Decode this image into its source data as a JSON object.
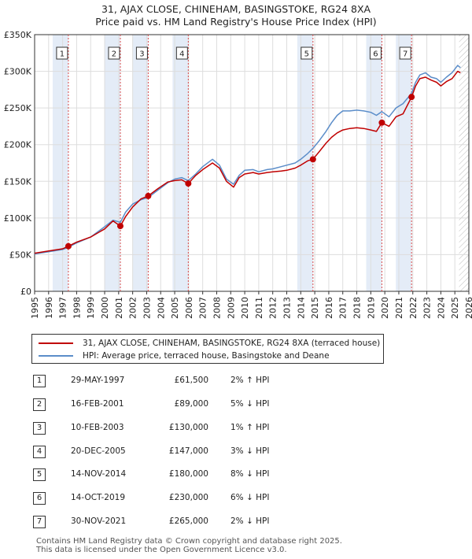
{
  "title_line1": "31, AJAX CLOSE, CHINEHAM, BASINGSTOKE, RG24 8XA",
  "title_line2": "Price paid vs. HM Land Registry's House Price Index (HPI)",
  "colors": {
    "price_paid": "#c00000",
    "hpi": "#5b8dc9",
    "shade": "#dbe6f4",
    "marker_line": "#d94a4a",
    "grid": "#dddddd"
  },
  "legend": {
    "price_paid": "31, AJAX CLOSE, CHINEHAM, BASINGSTOKE, RG24 8XA (terraced house)",
    "hpi": "HPI: Average price, terraced house, Basingstoke and Deane"
  },
  "chart_data": {
    "type": "line",
    "title": "Price paid vs. HM Land Registry's House Price Index (HPI)",
    "xlim": [
      1995,
      2026
    ],
    "ylim": [
      0,
      350000
    ],
    "y_ticks": [
      0,
      50000,
      100000,
      150000,
      200000,
      250000,
      300000,
      350000
    ],
    "y_tick_labels": [
      "£0",
      "£50K",
      "£100K",
      "£150K",
      "£200K",
      "£250K",
      "£300K",
      "£350K"
    ],
    "x_ticks": [
      1995,
      1996,
      1997,
      1998,
      1999,
      2000,
      2001,
      2002,
      2003,
      2004,
      2005,
      2006,
      2007,
      2008,
      2009,
      2010,
      2011,
      2012,
      2013,
      2014,
      2015,
      2016,
      2017,
      2018,
      2019,
      2020,
      2021,
      2022,
      2023,
      2024,
      2025,
      2026
    ],
    "hatched_from": 2025.3,
    "series": [
      {
        "name": "31, AJAX CLOSE, CHINEHAM, BASINGSTOKE, RG24 8XA (terraced house)",
        "x": [
          1995.0,
          1996.0,
          1997.0,
          1997.41,
          1998.0,
          1999.0,
          2000.0,
          2000.6,
          2001.12,
          2001.5,
          2002.0,
          2002.6,
          2003.11,
          2003.8,
          2004.5,
          2005.0,
          2005.5,
          2005.97,
          2006.5,
          2007.0,
          2007.7,
          2008.2,
          2008.7,
          2009.2,
          2009.6,
          2010.0,
          2010.6,
          2011.0,
          2011.6,
          2012.0,
          2012.6,
          2013.0,
          2013.6,
          2014.0,
          2014.5,
          2014.87,
          2015.3,
          2015.8,
          2016.2,
          2016.6,
          2017.0,
          2017.5,
          2018.0,
          2018.5,
          2019.0,
          2019.4,
          2019.79,
          2020.3,
          2020.8,
          2021.3,
          2021.91,
          2022.2,
          2022.5,
          2022.9,
          2023.3,
          2023.7,
          2024.0,
          2024.4,
          2024.8,
          2025.2,
          2025.4
        ],
        "values": [
          52000,
          55000,
          58000,
          61500,
          67000,
          74000,
          85000,
          96000,
          89000,
          102000,
          115000,
          126000,
          130000,
          140000,
          149000,
          151000,
          152000,
          147000,
          158000,
          166000,
          175000,
          168000,
          150000,
          142000,
          155000,
          160000,
          162000,
          160000,
          162000,
          163000,
          164000,
          165000,
          168000,
          172000,
          178000,
          180000,
          190000,
          202000,
          210000,
          216000,
          220000,
          222000,
          223000,
          222000,
          220000,
          218000,
          230000,
          225000,
          238000,
          242000,
          265000,
          280000,
          290000,
          292000,
          288000,
          285000,
          280000,
          286000,
          290000,
          300000,
          298000
        ]
      },
      {
        "name": "HPI: Average price, terraced house, Basingstoke and Deane",
        "x": [
          1995.0,
          1996.0,
          1997.0,
          1997.41,
          1998.0,
          1999.0,
          2000.0,
          2000.6,
          2001.12,
          2001.5,
          2002.0,
          2002.6,
          2003.11,
          2003.8,
          2004.5,
          2005.0,
          2005.5,
          2005.97,
          2006.5,
          2007.0,
          2007.7,
          2008.2,
          2008.7,
          2009.2,
          2009.6,
          2010.0,
          2010.6,
          2011.0,
          2011.6,
          2012.0,
          2012.6,
          2013.0,
          2013.6,
          2014.0,
          2014.5,
          2014.87,
          2015.3,
          2015.8,
          2016.2,
          2016.6,
          2017.0,
          2017.5,
          2018.0,
          2018.5,
          2019.0,
          2019.4,
          2019.79,
          2020.3,
          2020.8,
          2021.3,
          2021.91,
          2022.2,
          2022.5,
          2022.9,
          2023.3,
          2023.7,
          2024.0,
          2024.4,
          2024.8,
          2025.2,
          2025.4
        ],
        "values": [
          51000,
          54000,
          57000,
          60000,
          66000,
          74000,
          88000,
          97000,
          94000,
          108000,
          119000,
          125000,
          128000,
          138000,
          148000,
          153000,
          155000,
          151000,
          160000,
          170000,
          180000,
          172000,
          153000,
          146000,
          158000,
          165000,
          166000,
          163000,
          166000,
          167000,
          170000,
          172000,
          175000,
          180000,
          188000,
          195000,
          205000,
          218000,
          230000,
          240000,
          246000,
          246000,
          247000,
          246000,
          244000,
          240000,
          245000,
          238000,
          250000,
          256000,
          270000,
          285000,
          295000,
          298000,
          292000,
          290000,
          285000,
          292000,
          298000,
          308000,
          305000
        ]
      }
    ],
    "transactions": [
      {
        "n": "1",
        "date": "29-MAY-1997",
        "x": 1997.41,
        "price": 61500,
        "price_label": "£61,500",
        "hpi": "2% ↑ HPI"
      },
      {
        "n": "2",
        "date": "16-FEB-2001",
        "x": 2001.12,
        "price": 89000,
        "price_label": "£89,000",
        "hpi": "5% ↓ HPI"
      },
      {
        "n": "3",
        "date": "10-FEB-2003",
        "x": 2003.11,
        "price": 130000,
        "price_label": "£130,000",
        "hpi": "1% ↑ HPI"
      },
      {
        "n": "4",
        "date": "20-DEC-2005",
        "x": 2005.97,
        "price": 147000,
        "price_label": "£147,000",
        "hpi": "3% ↓ HPI"
      },
      {
        "n": "5",
        "date": "14-NOV-2014",
        "x": 2014.87,
        "price": 180000,
        "price_label": "£180,000",
        "hpi": "8% ↓ HPI"
      },
      {
        "n": "6",
        "date": "14-OCT-2019",
        "x": 2019.79,
        "price": 230000,
        "price_label": "£230,000",
        "hpi": "6% ↓ HPI"
      },
      {
        "n": "7",
        "date": "30-NOV-2021",
        "x": 2021.91,
        "price": 265000,
        "price_label": "£265,000",
        "hpi": "2% ↓ HPI"
      }
    ]
  },
  "footer_line1": "Contains HM Land Registry data © Crown copyright and database right 2025.",
  "footer_line2": "This data is licensed under the Open Government Licence v3.0."
}
